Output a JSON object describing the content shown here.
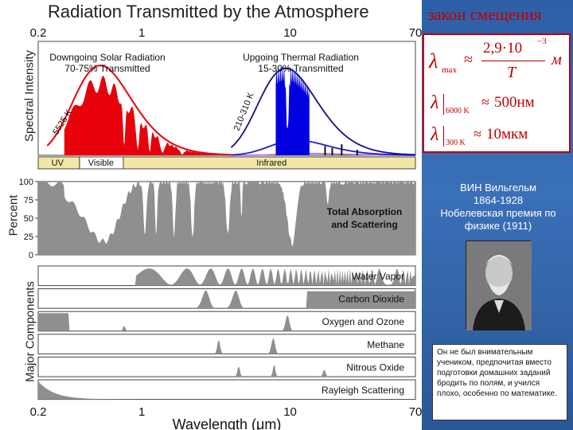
{
  "figure": {
    "title": "Radiation Transmitted by the Atmosphere",
    "top_ticks": [
      "0.2",
      "1",
      "10",
      "70"
    ],
    "bottom_ticks": [
      "0.2",
      "1",
      "10",
      "70"
    ],
    "xlabel": "Wavelength (μm)",
    "panel1": {
      "ylabel": "Spectral Intensity",
      "solar_label_1": "Downgoing Solar Radiation",
      "solar_label_2": "70-75% Transmitted",
      "thermal_label_1": "Upgoing Thermal Radiation",
      "thermal_label_2": "15-30% Transmitted",
      "temp_solar": "5525 K",
      "temp_thermal": "210-310 K",
      "band_uv": "UV",
      "band_visible": "Visible",
      "band_infrared": "Infrared"
    },
    "panel2": {
      "ylabel": "Percent",
      "yticks": [
        "100",
        "75",
        "50",
        "25",
        "0"
      ],
      "label_1": "Total Absorption",
      "label_2": "and Scattering"
    },
    "panel3": {
      "ylabel": "Major Components",
      "components": [
        "Water Vapor",
        "Carbon Dioxide",
        "Oxygen and Ozone",
        "Methane",
        "Nitrous Oxide",
        "Rayleigh Scattering"
      ]
    }
  },
  "colors": {
    "solar_fill": "#e8000b",
    "thermal_fill": "#0000e0",
    "gray_fill": "#8f8f8f",
    "curve_dark_blue": "#10108a",
    "curve_blue": "#2020c8",
    "curve_violet": "#b070e0",
    "accent_red": "#c00000",
    "slide_blue": "#3a70b8"
  },
  "chart_data": {
    "type": "area",
    "x_scale": "log",
    "xlim": [
      0.2,
      70
    ],
    "xlabel": "Wavelength (μm)",
    "panels": [
      {
        "name": "spectral_intensity",
        "series": [
          {
            "name": "Downgoing Solar Radiation",
            "x": [
              0.2,
              0.3,
              0.5,
              0.8,
              1.2,
              2.0,
              3.0
            ],
            "values": [
              0.05,
              0.5,
              1.0,
              0.75,
              0.45,
              0.15,
              0.03
            ]
          },
          {
            "name": "Upgoing Thermal Radiation",
            "x": [
              5,
              8,
              10,
              13,
              20,
              40,
              70
            ],
            "values": [
              0.1,
              0.7,
              0.95,
              0.85,
              0.5,
              0.15,
              0.02
            ]
          }
        ]
      },
      {
        "name": "total_absorption",
        "ylim": [
          0,
          100
        ],
        "yticks": [
          0,
          25,
          50,
          75,
          100
        ],
        "x": [
          0.2,
          0.3,
          0.5,
          0.7,
          1.0,
          1.4,
          1.9,
          2.7,
          4.3,
          6.0,
          8.5,
          10,
          13,
          20,
          70
        ],
        "values": [
          100,
          70,
          20,
          15,
          25,
          95,
          95,
          95,
          100,
          100,
          40,
          20,
          40,
          100,
          100
        ]
      }
    ],
    "components": [
      "Water Vapor",
      "Carbon Dioxide",
      "Oxygen and Ozone",
      "Methane",
      "Nitrous Oxide",
      "Rayleigh Scattering"
    ]
  },
  "side": {
    "law_title": "закон смещения",
    "formula": {
      "lambda": "λ",
      "max_sub": "max",
      "eq_glyph": "≈",
      "numerator": "2,9·10",
      "numerator_exp": "−3",
      "denominator": "T",
      "unit_m": "м",
      "sub_6000": "6000 K",
      "value_6000": "500нм",
      "sub_300": "300 K",
      "value_300": "10мкм"
    },
    "person_name": "ВИН Вильгельм",
    "years": "1864-1928",
    "prize": "Нобелевская премия по физике (1911)",
    "quote": "Он не был внимательным учеником, предпочитая вместо подготовки домашних заданий бродить по полям, и учился плохо, особенно по математике."
  }
}
